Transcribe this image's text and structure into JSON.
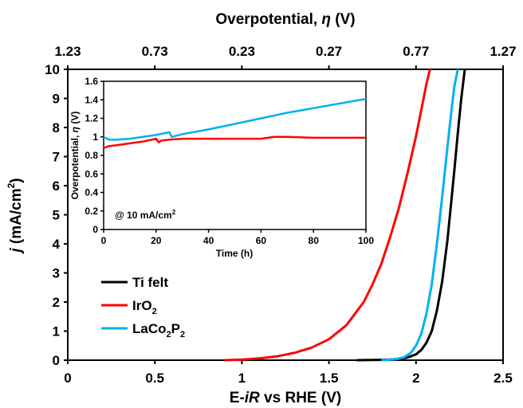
{
  "chart_data": [
    {
      "type": "line",
      "xlabel": "E-iR vs RHE (V)",
      "xlabel_parts": [
        "E-",
        "iR",
        " vs RHE (V)"
      ],
      "ylabel": "j (mA/cm2)",
      "ylabel_parts": [
        "j",
        " (mA/cm",
        "2",
        ")"
      ],
      "top_xlabel": "Overpotential, η (V)",
      "top_xlabel_parts": [
        "Overpotential, ",
        "η",
        " (V)"
      ],
      "xlim": [
        0,
        2.5
      ],
      "ylim": [
        0,
        10
      ],
      "x_ticks": [
        "0",
        "0.5",
        "1",
        "1.5",
        "2",
        "2.5"
      ],
      "y_ticks": [
        "0",
        "1",
        "2",
        "3",
        "4",
        "5",
        "6",
        "7",
        "8",
        "9",
        "10"
      ],
      "top_x_ticks": [
        "1.23",
        "0.73",
        "0.23",
        "0.27",
        "0.77",
        "1.27"
      ],
      "legend_position": "bottom-left",
      "grid": false,
      "series": [
        {
          "name": "Ti felt",
          "name_parts": [
            "Ti felt"
          ],
          "color": "#000000",
          "x": [
            1.66,
            1.78,
            1.85,
            1.9,
            1.95,
            2.0,
            2.03,
            2.06,
            2.09,
            2.12,
            2.15,
            2.18,
            2.2,
            2.22,
            2.24,
            2.26,
            2.28
          ],
          "y": [
            0.0,
            0.01,
            0.02,
            0.04,
            0.09,
            0.2,
            0.35,
            0.6,
            1.0,
            1.7,
            2.7,
            4.1,
            5.3,
            6.5,
            7.8,
            9.0,
            10.0
          ]
        },
        {
          "name": "IrO2",
          "name_parts": [
            "IrO",
            "2"
          ],
          "color": "#ff0000",
          "x": [
            0.9,
            1.0,
            1.1,
            1.2,
            1.3,
            1.4,
            1.5,
            1.6,
            1.7,
            1.75,
            1.8,
            1.85,
            1.9,
            1.95,
            2.0,
            2.03,
            2.06,
            2.08
          ],
          "y": [
            0.0,
            0.02,
            0.06,
            0.13,
            0.25,
            0.43,
            0.72,
            1.2,
            2.0,
            2.6,
            3.3,
            4.2,
            5.2,
            6.4,
            7.7,
            8.6,
            9.5,
            10.0
          ]
        },
        {
          "name": "LaCo2P2",
          "name_parts": [
            "LaCo",
            "2",
            "P",
            "2"
          ],
          "color": "#00b0f0",
          "x": [
            1.8,
            1.88,
            1.93,
            1.97,
            2.0,
            2.03,
            2.06,
            2.09,
            2.12,
            2.15,
            2.18,
            2.2,
            2.22,
            2.24
          ],
          "y": [
            0.0,
            0.03,
            0.1,
            0.25,
            0.5,
            0.9,
            1.6,
            2.6,
            4.0,
            5.6,
            7.3,
            8.4,
            9.4,
            10.0
          ]
        }
      ]
    },
    {
      "type": "line",
      "xlabel": "Time (h)",
      "ylabel": "Overpotential, η (V)",
      "ylabel_parts": [
        "Overpotential, ",
        "η",
        " (V)"
      ],
      "annotation": "@ 10 mA/cm2",
      "annotation_parts": [
        "@ 10 mA/cm",
        "2"
      ],
      "xlim": [
        0,
        100
      ],
      "ylim": [
        0,
        1.6
      ],
      "x_ticks": [
        "0",
        "20",
        "40",
        "60",
        "80",
        "100"
      ],
      "y_ticks": [
        "0",
        "0.2",
        "0.4",
        "0.6",
        "0.8",
        "1",
        "1.2",
        "1.4",
        "1.6"
      ],
      "grid": false,
      "series": [
        {
          "color": "#ff0000",
          "x": [
            0,
            2,
            5,
            10,
            15,
            20,
            21,
            22,
            25,
            30,
            40,
            50,
            60,
            65,
            70,
            80,
            90,
            100
          ],
          "y": [
            0.88,
            0.9,
            0.91,
            0.93,
            0.95,
            0.98,
            0.94,
            0.96,
            0.97,
            0.98,
            0.98,
            0.98,
            0.98,
            1.0,
            1.0,
            0.99,
            0.99,
            0.99
          ]
        },
        {
          "color": "#00b0f0",
          "x": [
            0,
            2,
            5,
            10,
            15,
            20,
            25,
            26,
            30,
            40,
            50,
            60,
            70,
            80,
            90,
            100
          ],
          "y": [
            1.0,
            0.97,
            0.97,
            0.98,
            1.0,
            1.02,
            1.05,
            1.0,
            1.03,
            1.08,
            1.14,
            1.2,
            1.26,
            1.31,
            1.36,
            1.41
          ]
        }
      ]
    }
  ]
}
